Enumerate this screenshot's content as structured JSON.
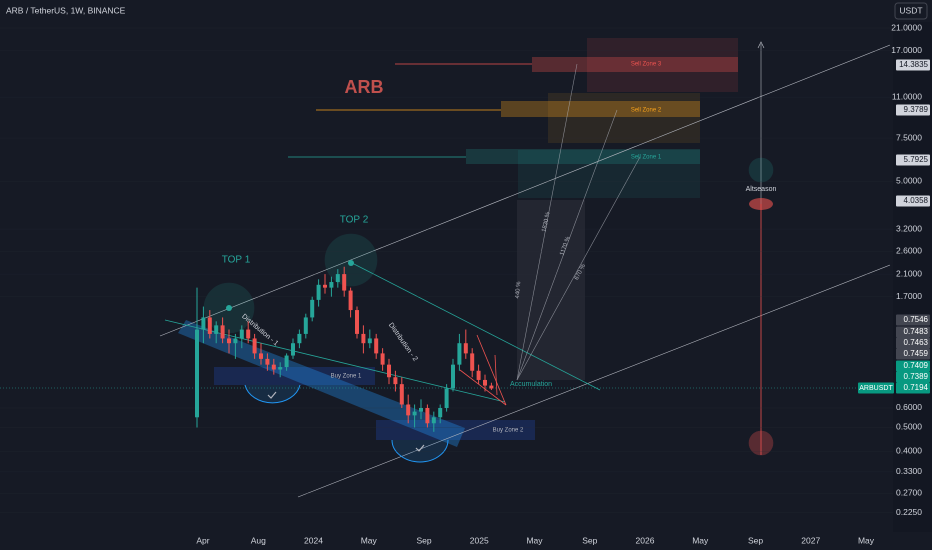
{
  "header": {
    "symbol": "ARB / TetherUS, 1W, BINANCE",
    "currency": "USDT"
  },
  "chart_data": {
    "type": "candlestick",
    "log_scale": true,
    "up_color": "#26a69a",
    "down_color": "#ef5350",
    "open": [
      0.55,
      1.25,
      1.4,
      1.2,
      1.3,
      1.15,
      1.1,
      1.15,
      1.25,
      1.15,
      1.0,
      0.95,
      0.9,
      0.86,
      0.88,
      0.98,
      1.1,
      1.2,
      1.4,
      1.65,
      1.9,
      1.85,
      1.95,
      2.1,
      1.8,
      1.5,
      1.2,
      1.1,
      1.15,
      1.0,
      0.9,
      0.8,
      0.75,
      0.62,
      0.56,
      0.58,
      0.6,
      0.52,
      0.55,
      0.6,
      0.72,
      0.9,
      1.1,
      1.0,
      0.85,
      0.78,
      0.74
    ],
    "high": [
      1.85,
      1.55,
      1.5,
      1.35,
      1.4,
      1.25,
      1.2,
      1.3,
      1.35,
      1.2,
      1.1,
      1.0,
      0.95,
      0.92,
      1.0,
      1.15,
      1.25,
      1.45,
      1.7,
      2.0,
      2.1,
      2.05,
      2.2,
      2.25,
      1.85,
      1.55,
      1.3,
      1.25,
      1.2,
      1.05,
      0.95,
      0.85,
      0.8,
      0.68,
      0.62,
      0.65,
      0.62,
      0.58,
      0.62,
      0.75,
      0.95,
      1.2,
      1.25,
      1.05,
      0.9,
      0.82,
      0.76
    ],
    "low": [
      0.5,
      1.1,
      1.15,
      1.1,
      1.1,
      1.0,
      0.95,
      1.05,
      1.1,
      0.95,
      0.9,
      0.85,
      0.82,
      0.8,
      0.85,
      0.95,
      1.05,
      1.15,
      1.35,
      1.55,
      1.75,
      1.7,
      1.85,
      1.7,
      1.4,
      1.15,
      1.0,
      1.05,
      0.95,
      0.85,
      0.75,
      0.7,
      0.6,
      0.52,
      0.5,
      0.54,
      0.5,
      0.48,
      0.52,
      0.58,
      0.7,
      0.85,
      0.95,
      0.8,
      0.75,
      0.7,
      0.71
    ],
    "close": [
      1.25,
      1.4,
      1.2,
      1.3,
      1.15,
      1.1,
      1.15,
      1.25,
      1.15,
      1.0,
      0.95,
      0.9,
      0.86,
      0.88,
      0.98,
      1.1,
      1.2,
      1.4,
      1.65,
      1.9,
      1.85,
      1.95,
      2.1,
      1.8,
      1.5,
      1.2,
      1.1,
      1.15,
      1.0,
      0.9,
      0.8,
      0.75,
      0.62,
      0.56,
      0.58,
      0.6,
      0.52,
      0.55,
      0.6,
      0.72,
      0.9,
      1.1,
      1.0,
      0.85,
      0.78,
      0.74,
      0.72
    ],
    "ylim": [
      0.188,
      27.3
    ],
    "yticks": [
      {
        "value": 21,
        "label": "21.0000"
      },
      {
        "value": 17,
        "label": "17.0000"
      },
      {
        "value": 11,
        "label": "11.0000"
      },
      {
        "value": 7.5,
        "label": "7.5000"
      },
      {
        "value": 5,
        "label": "5.0000"
      },
      {
        "value": 3.2,
        "label": "3.2000"
      },
      {
        "value": 2.6,
        "label": "2.6000"
      },
      {
        "value": 2.1,
        "label": "2.1000"
      },
      {
        "value": 1.7,
        "label": "1.7000"
      },
      {
        "value": 0.6,
        "label": "0.6000"
      },
      {
        "value": 0.5,
        "label": "0.5000"
      },
      {
        "value": 0.4,
        "label": "0.4000"
      },
      {
        "value": 0.33,
        "label": "0.3300"
      },
      {
        "value": 0.27,
        "label": "0.2700"
      },
      {
        "value": 0.225,
        "label": "0.2250"
      }
    ],
    "xticks": [
      "Apr",
      "Aug",
      "2024",
      "May",
      "Sep",
      "2025",
      "May",
      "Sep",
      "2026",
      "May",
      "Sep",
      "2027",
      "May"
    ],
    "price_labels": [
      "14.3835",
      "9.3789",
      "5.7925",
      "4.0358",
      "0.7546",
      "0.7483",
      "0.7463",
      "0.7459",
      "0.7409",
      "0.7389",
      "0.7194"
    ],
    "current_symbol": "ARBUSDT"
  },
  "annotations": {
    "title": "ARB",
    "top1": "TOP 1",
    "top2": "TOP 2",
    "dist1": "Distribution - 1",
    "dist2": "Distribution - 2",
    "buy1": "Buy Zone 1",
    "buy2": "Buy Zone 2",
    "sell3": "Sell Zone 3",
    "sell2": "Sell Zone 2",
    "sell1": "Sell Zone 1",
    "accumulation": "Accumulation",
    "altseason": "Altseason",
    "p440": "440 %",
    "p1830": "1830 %",
    "p1170": "1170 %",
    "p670": "670 %"
  }
}
